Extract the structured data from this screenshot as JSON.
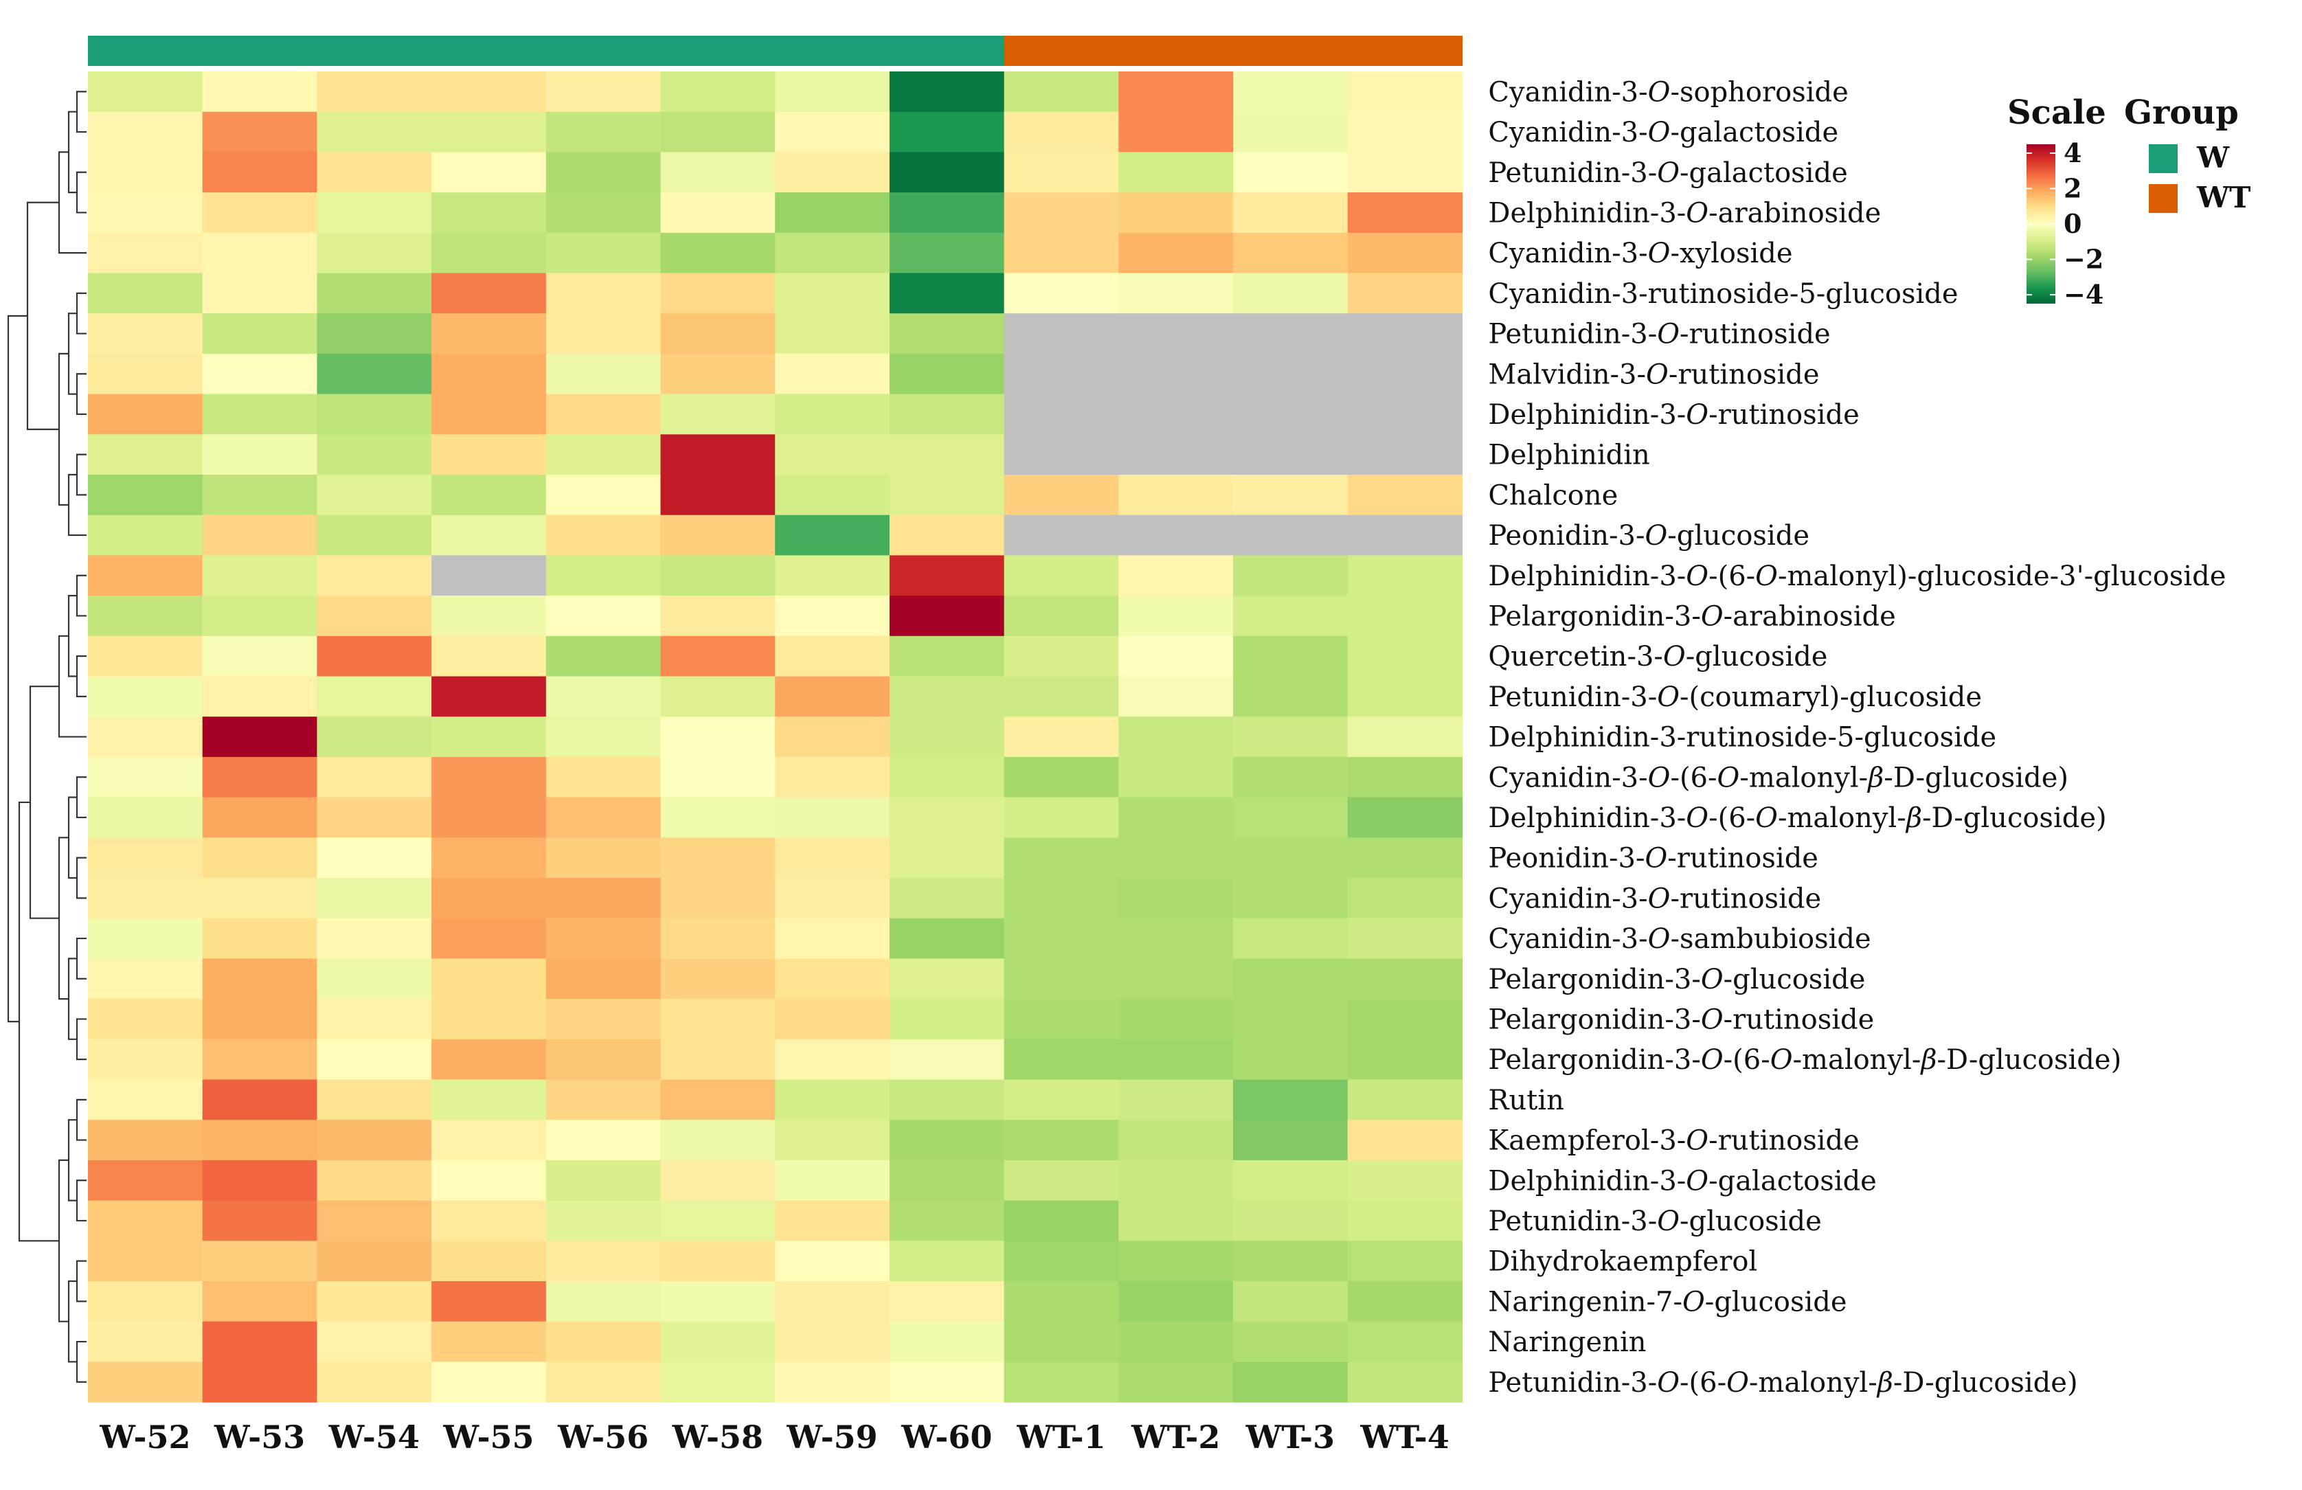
{
  "chart_data": {
    "type": "heatmap",
    "columns": [
      "W-52",
      "W-53",
      "W-54",
      "W-55",
      "W-56",
      "W-58",
      "W-59",
      "W-60",
      "WT-1",
      "WT-2",
      "WT-3",
      "WT-4"
    ],
    "column_groups": [
      "W",
      "W",
      "W",
      "W",
      "W",
      "W",
      "W",
      "W",
      "WT",
      "WT",
      "WT",
      "WT"
    ],
    "rows": [
      "Cyanidin-3-O-sophoroside",
      "Cyanidin-3-O-galactoside",
      "Petunidin-3-O-galactoside",
      "Delphinidin-3-O-arabinoside",
      "Cyanidin-3-O-xyloside",
      "Cyanidin-3-rutinoside-5-glucoside",
      "Petunidin-3-O-rutinoside",
      "Malvidin-3-O-rutinoside",
      "Delphinidin-3-O-rutinoside",
      "Delphinidin",
      "Chalcone",
      "Peonidin-3-O-glucoside",
      "Delphinidin-3-O-(6-O-malonyl)-glucoside-3'-glucoside",
      "Pelargonidin-3-O-arabinoside",
      "Quercetin-3-O-glucoside",
      "Petunidin-3-O-(coumaryl)-glucoside",
      "Delphinidin-3-rutinoside-5-glucoside",
      "Cyanidin-3-O-(6-O-malonyl-β-D-glucoside)",
      "Delphinidin-3-O-(6-O-malonyl-β-D-glucoside)",
      "Peonidin-3-O-rutinoside",
      "Cyanidin-3-O-rutinoside",
      "Cyanidin-3-O-sambubioside",
      "Pelargonidin-3-O-glucoside",
      "Pelargonidin-3-O-rutinoside",
      "Pelargonidin-3-O-(6-O-malonyl-β-D-glucoside)",
      "Rutin",
      "Kaempferol-3-O-rutinoside",
      "Delphinidin-3-O-galactoside",
      "Petunidin-3-O-glucoside",
      "Dihydrokaempferol",
      "Naringenin-7-O-glucoside",
      "Naringenin",
      "Petunidin-3-O-(6-O-malonyl-β-D-glucoside)"
    ],
    "values": [
      [
        -0.8,
        0.2,
        0.8,
        0.8,
        0.5,
        -1.0,
        -0.5,
        -4.2,
        -1.2,
        2.3,
        -0.3,
        0.3
      ],
      [
        0.3,
        2.2,
        -0.8,
        -0.8,
        -1.3,
        -1.4,
        0.2,
        -3.6,
        0.6,
        2.3,
        -0.4,
        0.2
      ],
      [
        0.3,
        2.4,
        0.8,
        0.1,
        -1.7,
        -0.4,
        0.5,
        -4.3,
        0.5,
        -1.0,
        0.0,
        0.2
      ],
      [
        0.2,
        0.8,
        -0.6,
        -1.2,
        -1.6,
        0.2,
        -2.0,
        -3.2,
        1.1,
        1.2,
        0.6,
        2.4
      ],
      [
        0.4,
        0.3,
        -0.8,
        -1.4,
        -1.2,
        -1.8,
        -1.3,
        -2.8,
        1.1,
        1.7,
        1.3,
        1.6
      ],
      [
        -1.2,
        0.3,
        -1.6,
        2.5,
        0.6,
        1.0,
        -0.8,
        -4.0,
        0.0,
        -0.2,
        -0.4,
        1.1
      ],
      [
        0.5,
        -1.2,
        -2.1,
        1.6,
        0.6,
        1.4,
        -0.8,
        -1.6,
        null,
        null,
        null,
        null
      ],
      [
        0.6,
        0.0,
        -2.7,
        1.8,
        -0.4,
        1.2,
        0.2,
        -2.0,
        null,
        null,
        null,
        null
      ],
      [
        1.8,
        -1.2,
        -1.4,
        1.8,
        1.0,
        -0.7,
        -1.0,
        -1.2,
        null,
        null,
        null,
        null
      ],
      [
        -0.8,
        -0.3,
        -1.2,
        0.9,
        -0.8,
        4.0,
        -0.8,
        -0.8,
        null,
        null,
        null,
        null
      ],
      [
        -1.9,
        -1.4,
        -0.7,
        -1.3,
        0.1,
        4.0,
        -1.0,
        -0.8,
        1.2,
        0.6,
        0.5,
        1.0
      ],
      [
        -1.0,
        1.1,
        -1.2,
        -0.5,
        0.9,
        1.2,
        -3.1,
        0.8,
        null,
        null,
        null,
        null
      ],
      [
        1.7,
        -0.8,
        0.6,
        null,
        -1.0,
        -1.2,
        -0.8,
        3.8,
        -1.0,
        0.3,
        -1.3,
        -1.0
      ],
      [
        -1.3,
        -1.0,
        1.0,
        -0.4,
        0.0,
        0.6,
        0.1,
        4.5,
        -1.3,
        -0.3,
        -1.0,
        -1.0
      ],
      [
        0.7,
        -0.2,
        2.6,
        0.5,
        -1.7,
        2.3,
        0.6,
        -1.5,
        -0.9,
        0.0,
        -1.6,
        -1.0
      ],
      [
        -0.3,
        0.4,
        -0.6,
        4.0,
        -0.4,
        -0.8,
        1.9,
        -1.1,
        -1.1,
        -0.2,
        -1.6,
        -1.0
      ],
      [
        0.4,
        4.5,
        -1.1,
        -1.0,
        -0.5,
        0.0,
        1.0,
        -1.1,
        0.5,
        -1.2,
        -1.1,
        -0.5
      ],
      [
        -0.2,
        2.5,
        0.6,
        2.1,
        0.8,
        0.0,
        0.6,
        -1.0,
        -1.8,
        -1.2,
        -1.6,
        -1.7
      ],
      [
        -0.5,
        1.9,
        1.1,
        2.1,
        1.5,
        -0.3,
        -0.4,
        -0.8,
        -1.0,
        -1.6,
        -1.5,
        -2.2
      ],
      [
        0.6,
        0.9,
        0.0,
        1.7,
        1.2,
        1.1,
        0.6,
        -0.8,
        -1.6,
        -1.6,
        -1.6,
        -1.6
      ],
      [
        0.5,
        0.5,
        -0.5,
        1.9,
        1.9,
        1.1,
        0.5,
        -1.1,
        -1.6,
        -1.7,
        -1.6,
        -1.4
      ],
      [
        -0.3,
        0.9,
        0.2,
        2.0,
        1.7,
        1.0,
        0.3,
        -2.0,
        -1.6,
        -1.6,
        -1.2,
        -1.1
      ],
      [
        0.3,
        1.8,
        -0.4,
        0.9,
        1.8,
        1.2,
        0.8,
        -0.8,
        -1.6,
        -1.6,
        -1.7,
        -1.7
      ],
      [
        0.8,
        1.8,
        0.4,
        0.9,
        1.1,
        0.8,
        1.0,
        -1.0,
        -1.7,
        -1.8,
        -1.7,
        -1.8
      ],
      [
        0.5,
        1.5,
        0.1,
        1.8,
        1.4,
        0.8,
        0.3,
        -0.2,
        -1.9,
        -1.9,
        -1.7,
        -1.8
      ],
      [
        0.3,
        2.9,
        0.8,
        -0.7,
        1.1,
        1.5,
        -1.0,
        -1.2,
        -1.0,
        -1.1,
        -2.4,
        -1.2
      ],
      [
        1.6,
        1.7,
        1.6,
        0.4,
        0.1,
        -0.4,
        -0.8,
        -1.8,
        -1.7,
        -1.3,
        -2.3,
        0.8
      ],
      [
        2.4,
        2.8,
        1.0,
        0.1,
        -0.9,
        0.5,
        -0.3,
        -1.7,
        -1.1,
        -1.2,
        -1.0,
        -0.9
      ],
      [
        1.3,
        2.6,
        1.5,
        0.6,
        -0.7,
        -0.6,
        0.8,
        -1.6,
        -2.0,
        -1.2,
        -1.1,
        -1.0
      ],
      [
        1.3,
        1.2,
        1.6,
        0.9,
        0.6,
        0.8,
        0.1,
        -1.0,
        -1.9,
        -1.8,
        -1.7,
        -1.5
      ],
      [
        0.6,
        1.5,
        0.7,
        2.6,
        -0.4,
        -0.3,
        0.5,
        0.4,
        -1.7,
        -2.0,
        -1.3,
        -1.8
      ],
      [
        0.5,
        2.8,
        0.4,
        1.2,
        0.9,
        -0.7,
        0.5,
        -0.3,
        -1.7,
        -1.8,
        -1.6,
        -1.5
      ],
      [
        1.2,
        2.8,
        0.6,
        0.1,
        0.6,
        -0.6,
        0.2,
        0.0,
        -1.5,
        -1.7,
        -2.0,
        -1.3
      ]
    ],
    "missing_color": "#c0c0c0",
    "scale": {
      "title": "Scale",
      "ticks": [
        4,
        2,
        0,
        -2,
        -4
      ],
      "tick_labels": [
        "4",
        "2",
        "0",
        "−2",
        "−4"
      ],
      "range": [
        -4.5,
        4.5
      ],
      "colors": [
        "#006837",
        "#1a9850",
        "#66bd63",
        "#a6d96a",
        "#d9ef8b",
        "#ffffbf",
        "#fee08b",
        "#fdae61",
        "#f46d43",
        "#d73027",
        "#a50026"
      ]
    },
    "group_legend": {
      "title": "Group",
      "items": [
        {
          "label": "W",
          "color": "#1b9e77"
        },
        {
          "label": "WT",
          "color": "#d95f02"
        }
      ]
    },
    "row_dendrogram": "shown"
  }
}
